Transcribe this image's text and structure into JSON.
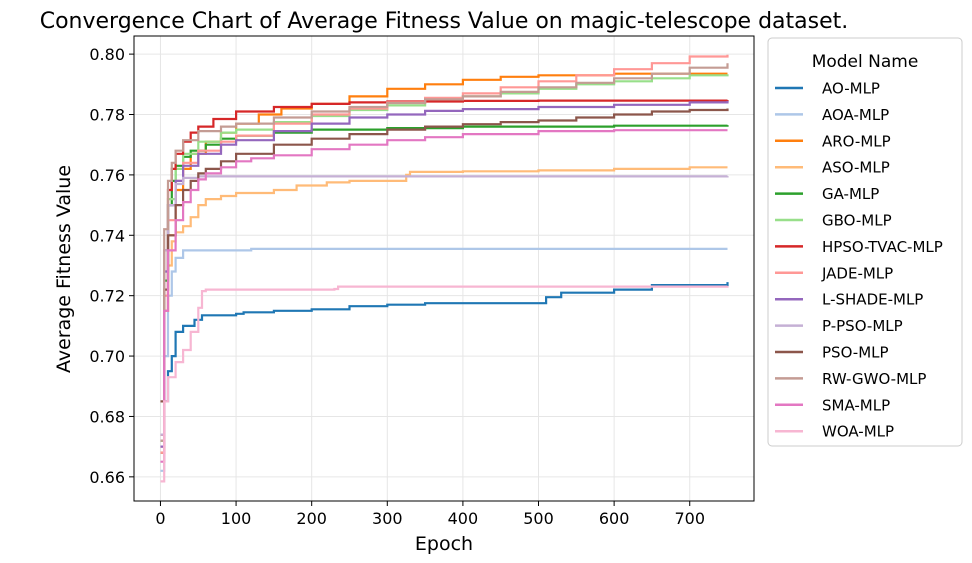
{
  "chart_data": {
    "type": "line",
    "title": "Convergence Chart of Average Fitness Value on magic-telescope dataset.",
    "xlabel": "Epoch",
    "ylabel": "Average Fitness Value",
    "xlim": [
      -35,
      785
    ],
    "ylim": [
      0.652,
      0.806
    ],
    "xticks": [
      0,
      100,
      200,
      300,
      400,
      500,
      600,
      700
    ],
    "yticks": [
      0.66,
      0.68,
      0.7,
      0.72,
      0.74,
      0.76,
      0.78,
      0.8
    ],
    "ytick_labels": [
      "0.66",
      "0.68",
      "0.70",
      "0.72",
      "0.74",
      "0.76",
      "0.78",
      "0.80"
    ],
    "grid": true,
    "legend": {
      "title": "Model Name",
      "placement": "outside-right"
    },
    "series": [
      {
        "name": "AO-MLP",
        "color": "#1f77b4",
        "points": [
          [
            0,
            0.668
          ],
          [
            5,
            0.685
          ],
          [
            10,
            0.695
          ],
          [
            15,
            0.7
          ],
          [
            20,
            0.708
          ],
          [
            30,
            0.71
          ],
          [
            45,
            0.712
          ],
          [
            55,
            0.7135
          ],
          [
            100,
            0.714
          ],
          [
            110,
            0.7145
          ],
          [
            150,
            0.715
          ],
          [
            200,
            0.7155
          ],
          [
            250,
            0.7165
          ],
          [
            300,
            0.717
          ],
          [
            350,
            0.7175
          ],
          [
            500,
            0.7175
          ],
          [
            510,
            0.7195
          ],
          [
            530,
            0.721
          ],
          [
            600,
            0.722
          ],
          [
            650,
            0.7235
          ],
          [
            750,
            0.7245
          ]
        ]
      },
      {
        "name": "AOA-MLP",
        "color": "#aec7e8",
        "points": [
          [
            0,
            0.662
          ],
          [
            5,
            0.7
          ],
          [
            10,
            0.72
          ],
          [
            15,
            0.728
          ],
          [
            20,
            0.7325
          ],
          [
            28,
            0.7325
          ],
          [
            30,
            0.735
          ],
          [
            120,
            0.7355
          ],
          [
            750,
            0.7355
          ]
        ]
      },
      {
        "name": "ARO-MLP",
        "color": "#ff7f0e",
        "points": [
          [
            0,
            0.668
          ],
          [
            5,
            0.715
          ],
          [
            10,
            0.74
          ],
          [
            20,
            0.755
          ],
          [
            30,
            0.762
          ],
          [
            40,
            0.767
          ],
          [
            60,
            0.771
          ],
          [
            80,
            0.774
          ],
          [
            100,
            0.777
          ],
          [
            130,
            0.78
          ],
          [
            160,
            0.782
          ],
          [
            200,
            0.7835
          ],
          [
            250,
            0.786
          ],
          [
            300,
            0.7885
          ],
          [
            350,
            0.79
          ],
          [
            400,
            0.7915
          ],
          [
            450,
            0.7925
          ],
          [
            500,
            0.793
          ],
          [
            600,
            0.7935
          ],
          [
            750,
            0.7935
          ]
        ]
      },
      {
        "name": "ASO-MLP",
        "color": "#ffbb78",
        "points": [
          [
            0,
            0.67
          ],
          [
            5,
            0.715
          ],
          [
            10,
            0.73
          ],
          [
            15,
            0.738
          ],
          [
            20,
            0.741
          ],
          [
            30,
            0.743
          ],
          [
            40,
            0.746
          ],
          [
            50,
            0.75
          ],
          [
            60,
            0.752
          ],
          [
            80,
            0.753
          ],
          [
            100,
            0.754
          ],
          [
            150,
            0.755
          ],
          [
            180,
            0.7565
          ],
          [
            220,
            0.7575
          ],
          [
            250,
            0.758
          ],
          [
            320,
            0.758
          ],
          [
            325,
            0.76
          ],
          [
            330,
            0.761
          ],
          [
            400,
            0.7612
          ],
          [
            500,
            0.7615
          ],
          [
            600,
            0.762
          ],
          [
            700,
            0.7625
          ],
          [
            750,
            0.7625
          ]
        ]
      },
      {
        "name": "GA-MLP",
        "color": "#2ca02c",
        "points": [
          [
            0,
            0.672
          ],
          [
            5,
            0.725
          ],
          [
            10,
            0.75
          ],
          [
            15,
            0.758
          ],
          [
            20,
            0.763
          ],
          [
            30,
            0.766
          ],
          [
            40,
            0.768
          ],
          [
            60,
            0.77
          ],
          [
            80,
            0.772
          ],
          [
            100,
            0.773
          ],
          [
            150,
            0.774
          ],
          [
            200,
            0.775
          ],
          [
            300,
            0.7755
          ],
          [
            400,
            0.776
          ],
          [
            500,
            0.776
          ],
          [
            600,
            0.7763
          ],
          [
            750,
            0.7765
          ]
        ]
      },
      {
        "name": "GBO-MLP",
        "color": "#98df8a",
        "points": [
          [
            0,
            0.672
          ],
          [
            5,
            0.728
          ],
          [
            10,
            0.752
          ],
          [
            20,
            0.762
          ],
          [
            30,
            0.767
          ],
          [
            50,
            0.771
          ],
          [
            80,
            0.774
          ],
          [
            100,
            0.775
          ],
          [
            150,
            0.7775
          ],
          [
            200,
            0.7795
          ],
          [
            250,
            0.7815
          ],
          [
            300,
            0.783
          ],
          [
            350,
            0.7845
          ],
          [
            400,
            0.786
          ],
          [
            450,
            0.787
          ],
          [
            500,
            0.7885
          ],
          [
            550,
            0.79
          ],
          [
            600,
            0.791
          ],
          [
            650,
            0.792
          ],
          [
            700,
            0.793
          ],
          [
            750,
            0.7933
          ]
        ]
      },
      {
        "name": "HPSO-TVAC-MLP",
        "color": "#d62728",
        "points": [
          [
            0,
            0.674
          ],
          [
            5,
            0.735
          ],
          [
            10,
            0.755
          ],
          [
            15,
            0.762
          ],
          [
            20,
            0.767
          ],
          [
            30,
            0.771
          ],
          [
            40,
            0.774
          ],
          [
            50,
            0.776
          ],
          [
            70,
            0.7785
          ],
          [
            100,
            0.781
          ],
          [
            150,
            0.7825
          ],
          [
            200,
            0.7835
          ],
          [
            250,
            0.784
          ],
          [
            300,
            0.7843
          ],
          [
            400,
            0.7845
          ],
          [
            500,
            0.7846
          ],
          [
            750,
            0.7848
          ]
        ]
      },
      {
        "name": "JADE-MLP",
        "color": "#ff9896",
        "points": [
          [
            0,
            0.668
          ],
          [
            5,
            0.72
          ],
          [
            10,
            0.745
          ],
          [
            20,
            0.758
          ],
          [
            30,
            0.764
          ],
          [
            50,
            0.768
          ],
          [
            80,
            0.771
          ],
          [
            100,
            0.773
          ],
          [
            150,
            0.777
          ],
          [
            200,
            0.78
          ],
          [
            250,
            0.782
          ],
          [
            300,
            0.784
          ],
          [
            350,
            0.7855
          ],
          [
            400,
            0.787
          ],
          [
            450,
            0.789
          ],
          [
            500,
            0.791
          ],
          [
            550,
            0.793
          ],
          [
            600,
            0.795
          ],
          [
            650,
            0.797
          ],
          [
            700,
            0.7992
          ],
          [
            750,
            0.7998
          ]
        ]
      },
      {
        "name": "L-SHADE-MLP",
        "color": "#9467bd",
        "points": [
          [
            0,
            0.67
          ],
          [
            5,
            0.728
          ],
          [
            10,
            0.75
          ],
          [
            20,
            0.758
          ],
          [
            30,
            0.763
          ],
          [
            50,
            0.767
          ],
          [
            80,
            0.77
          ],
          [
            100,
            0.7715
          ],
          [
            150,
            0.7745
          ],
          [
            200,
            0.777
          ],
          [
            250,
            0.779
          ],
          [
            300,
            0.78
          ],
          [
            350,
            0.7812
          ],
          [
            400,
            0.7818
          ],
          [
            500,
            0.7825
          ],
          [
            600,
            0.7832
          ],
          [
            700,
            0.784
          ],
          [
            750,
            0.7845
          ]
        ]
      },
      {
        "name": "P-PSO-MLP",
        "color": "#c5b0d5",
        "points": [
          [
            0,
            0.674
          ],
          [
            5,
            0.735
          ],
          [
            10,
            0.75
          ],
          [
            20,
            0.757
          ],
          [
            30,
            0.759
          ],
          [
            50,
            0.7595
          ],
          [
            750,
            0.7596
          ]
        ]
      },
      {
        "name": "PSO-MLP",
        "color": "#8c564b",
        "points": [
          [
            0,
            0.685
          ],
          [
            5,
            0.722
          ],
          [
            10,
            0.74
          ],
          [
            20,
            0.75
          ],
          [
            30,
            0.755
          ],
          [
            40,
            0.758
          ],
          [
            50,
            0.7605
          ],
          [
            60,
            0.762
          ],
          [
            80,
            0.7645
          ],
          [
            100,
            0.767
          ],
          [
            150,
            0.77
          ],
          [
            200,
            0.772
          ],
          [
            250,
            0.7735
          ],
          [
            300,
            0.775
          ],
          [
            350,
            0.776
          ],
          [
            400,
            0.7768
          ],
          [
            450,
            0.7775
          ],
          [
            500,
            0.778
          ],
          [
            550,
            0.779
          ],
          [
            600,
            0.78
          ],
          [
            650,
            0.781
          ],
          [
            700,
            0.7815
          ],
          [
            750,
            0.782
          ]
        ]
      },
      {
        "name": "RW-GWO-MLP",
        "color": "#c49c94",
        "points": [
          [
            0,
            0.672
          ],
          [
            5,
            0.742
          ],
          [
            10,
            0.758
          ],
          [
            15,
            0.764
          ],
          [
            20,
            0.768
          ],
          [
            30,
            0.7715
          ],
          [
            50,
            0.7745
          ],
          [
            80,
            0.776
          ],
          [
            100,
            0.777
          ],
          [
            150,
            0.779
          ],
          [
            200,
            0.781
          ],
          [
            250,
            0.7825
          ],
          [
            300,
            0.7838
          ],
          [
            350,
            0.785
          ],
          [
            400,
            0.786
          ],
          [
            450,
            0.7875
          ],
          [
            500,
            0.789
          ],
          [
            550,
            0.7905
          ],
          [
            600,
            0.792
          ],
          [
            650,
            0.7935
          ],
          [
            700,
            0.7955
          ],
          [
            750,
            0.797
          ]
        ]
      },
      {
        "name": "SMA-MLP",
        "color": "#e377c2",
        "points": [
          [
            0,
            0.665
          ],
          [
            5,
            0.715
          ],
          [
            10,
            0.735
          ],
          [
            20,
            0.745
          ],
          [
            30,
            0.751
          ],
          [
            40,
            0.755
          ],
          [
            50,
            0.7585
          ],
          [
            60,
            0.7605
          ],
          [
            80,
            0.7625
          ],
          [
            100,
            0.7645
          ],
          [
            120,
            0.7655
          ],
          [
            150,
            0.7665
          ],
          [
            200,
            0.7685
          ],
          [
            250,
            0.77
          ],
          [
            300,
            0.7715
          ],
          [
            350,
            0.7725
          ],
          [
            400,
            0.7735
          ],
          [
            500,
            0.7745
          ],
          [
            600,
            0.7748
          ],
          [
            750,
            0.7748
          ]
        ]
      },
      {
        "name": "WOA-MLP",
        "color": "#f7b6d2",
        "points": [
          [
            0,
            0.6585
          ],
          [
            5,
            0.685
          ],
          [
            10,
            0.693
          ],
          [
            20,
            0.698
          ],
          [
            30,
            0.702
          ],
          [
            40,
            0.708
          ],
          [
            50,
            0.716
          ],
          [
            55,
            0.7215
          ],
          [
            60,
            0.722
          ],
          [
            230,
            0.7222
          ],
          [
            235,
            0.723
          ],
          [
            750,
            0.7232
          ]
        ]
      }
    ]
  }
}
